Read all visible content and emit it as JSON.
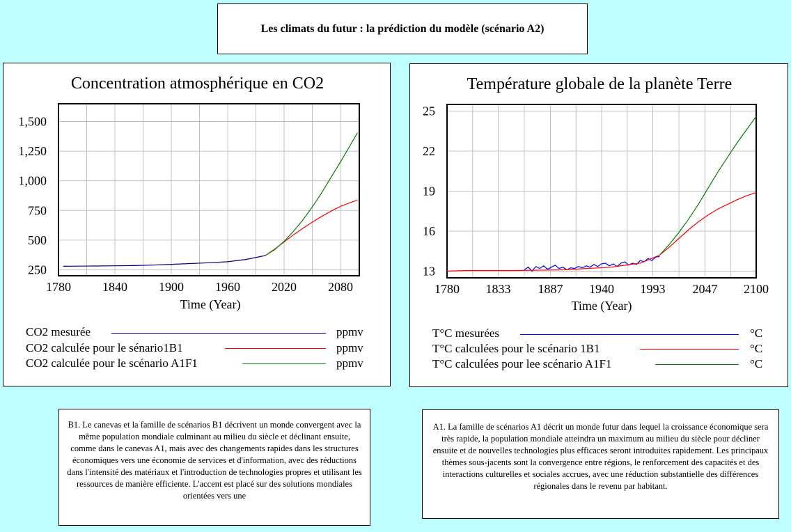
{
  "page_title": "Les climats du futur : la prédiction du modèle (scénario A2)",
  "chart_data": [
    {
      "type": "line",
      "title": "Concentration atmosphérique en CO2",
      "xlabel": "Time (Year)",
      "ylabel": "",
      "xlim": [
        1780,
        2100
      ],
      "ylim": [
        200,
        1650
      ],
      "x_ticks": [
        "1780",
        "1840",
        "1900",
        "1960",
        "2020",
        "2080"
      ],
      "x_tick_values": [
        1780,
        1840,
        1900,
        1960,
        2020,
        2080
      ],
      "y_ticks": [
        "1,500",
        "1,250",
        "1,000",
        "750",
        "500",
        "250"
      ],
      "y_tick_values": [
        1500,
        1250,
        1000,
        750,
        500,
        250
      ],
      "grid": true,
      "series": [
        {
          "name": "CO2 mesurée",
          "unit": "ppmv",
          "color": "#000080",
          "x": [
            1785,
            1800,
            1820,
            1840,
            1860,
            1880,
            1900,
            1920,
            1940,
            1960,
            1980,
            2000
          ],
          "y": [
            280,
            281,
            282,
            284,
            286,
            290,
            296,
            303,
            310,
            318,
            338,
            370
          ]
        },
        {
          "name": "CO2 calculée pour le sénario1B1",
          "unit": "ppmv",
          "color": "#ff0000",
          "x": [
            2000,
            2010,
            2020,
            2030,
            2040,
            2050,
            2060,
            2070,
            2080,
            2090,
            2098
          ],
          "y": [
            370,
            425,
            485,
            545,
            600,
            652,
            700,
            745,
            785,
            815,
            838
          ]
        },
        {
          "name": "CO2  calculée pour le scénario A1F1",
          "unit": "ppmv",
          "color": "#008000",
          "x": [
            2000,
            2010,
            2020,
            2030,
            2040,
            2050,
            2060,
            2070,
            2080,
            2090,
            2098
          ],
          "y": [
            370,
            420,
            490,
            575,
            670,
            780,
            900,
            1030,
            1160,
            1295,
            1405
          ]
        }
      ]
    },
    {
      "type": "line",
      "title": "Température globale de la planète Terre",
      "xlabel": "Time (Year)",
      "ylabel": "",
      "xlim": [
        1780,
        2100
      ],
      "ylim": [
        12.5,
        25.5
      ],
      "x_ticks": [
        "1780",
        "1833",
        "1887",
        "1940",
        "1993",
        "2047",
        "2100"
      ],
      "x_tick_values": [
        1780,
        1833,
        1887,
        1940,
        1993,
        2047,
        2100
      ],
      "y_ticks": [
        "25",
        "22",
        "19",
        "16",
        "13"
      ],
      "y_tick_values": [
        25,
        22,
        19,
        16,
        13
      ],
      "grid": true,
      "series": [
        {
          "name": "T°C mesurées",
          "unit": "°C",
          "color": "#0000ff",
          "x": [
            1860,
            1864,
            1868,
            1872,
            1876,
            1880,
            1884,
            1888,
            1892,
            1896,
            1900,
            1904,
            1908,
            1912,
            1916,
            1920,
            1924,
            1928,
            1932,
            1936,
            1940,
            1944,
            1948,
            1952,
            1956,
            1960,
            1964,
            1968,
            1972,
            1976,
            1980,
            1984,
            1988,
            1992,
            1996,
            2000
          ],
          "y": [
            13.1,
            13.3,
            13.0,
            13.35,
            13.2,
            13.4,
            13.15,
            13.3,
            13.45,
            13.2,
            13.3,
            13.1,
            13.25,
            13.2,
            13.35,
            13.25,
            13.4,
            13.3,
            13.5,
            13.35,
            13.55,
            13.6,
            13.4,
            13.55,
            13.35,
            13.6,
            13.7,
            13.45,
            13.6,
            13.5,
            13.8,
            13.7,
            13.95,
            13.8,
            14.05,
            14.1
          ]
        },
        {
          "name": "T°C calculées pour le scénario 1B1",
          "unit": "°C",
          "color": "#ff0000",
          "x": [
            1780,
            1800,
            1850,
            1900,
            1950,
            1980,
            2000,
            2010,
            2020,
            2030,
            2040,
            2050,
            2060,
            2070,
            2080,
            2090,
            2100
          ],
          "y": [
            13.0,
            13.05,
            13.05,
            13.1,
            13.3,
            13.6,
            14.2,
            14.8,
            15.45,
            16.1,
            16.7,
            17.2,
            17.65,
            18.0,
            18.35,
            18.65,
            18.9
          ]
        },
        {
          "name": "T°C calculées pour lee scénario A1F1",
          "unit": "°C",
          "color": "#008000",
          "x": [
            2000,
            2010,
            2020,
            2030,
            2040,
            2050,
            2060,
            2070,
            2080,
            2090,
            2100
          ],
          "y": [
            14.2,
            15.0,
            15.9,
            16.9,
            18.0,
            19.2,
            20.4,
            21.5,
            22.6,
            23.6,
            24.6
          ]
        }
      ]
    }
  ],
  "texts": {
    "b1": "B1. Le canevas et la famille de scénarios B1 décrivent un monde convergent avec la même population mondiale culminant au milieu du siècle et déclinant ensuite, comme dans le canevas A1, mais avec des changements rapides dans les structures économiques vers une économie de services et d'information, avec des réductions dans l'intensité des matériaux et l'introduction de technologies propres et utilisant les ressources de manière efficiente. L'accent est placé sur des solutions mondiales orientées vers une",
    "a1": "A1. La famille de scénarios A1 décrit un monde futur dans lequel la croissance économique sera très rapide, la population mondiale atteindra un maximum au milieu du siècle pour décliner ensuite et de nouvelles technologies plus efficaces seront introduites rapidement. Les principaux thèmes sous-jacents sont la convergence entre régions, le renforcement des capacités et des interactions culturelles et sociales accrues, avec une réduction substantielle des différences régionales dans le revenu par habitant."
  }
}
